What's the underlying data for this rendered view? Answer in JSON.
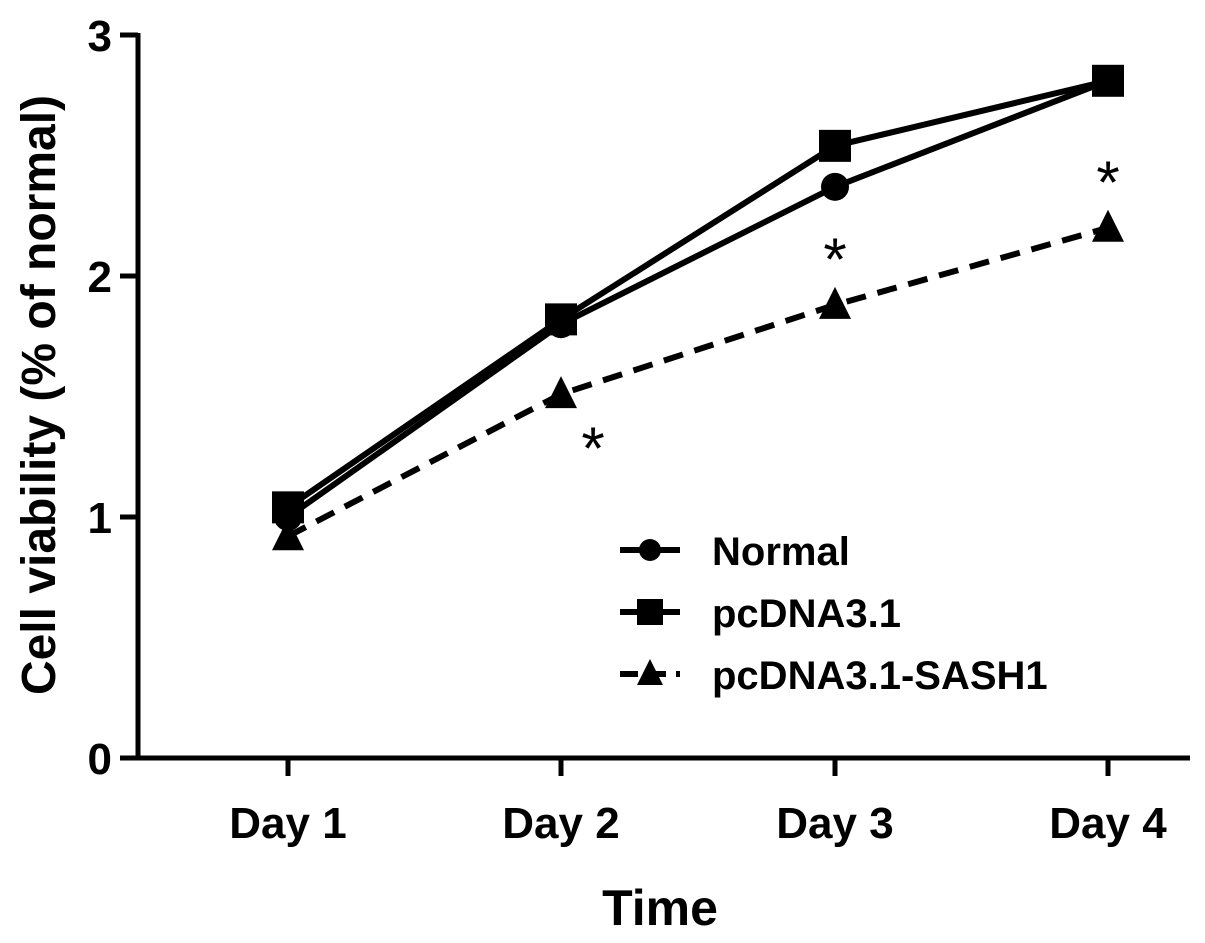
{
  "chart_data": {
    "type": "line",
    "title": "",
    "xlabel": "Time",
    "ylabel": "Cell viability (% of normal)",
    "categories": [
      "Day 1",
      "Day 2",
      "Day 3",
      "Day 4"
    ],
    "ylim": [
      0,
      3
    ],
    "yticks": [
      "0",
      "1",
      "2",
      "3"
    ],
    "grid": false,
    "legend_position": "bottom-right",
    "series": [
      {
        "name": "Normal",
        "marker": "circle",
        "dash": false,
        "color": "#000000",
        "values": [
          1.0,
          1.8,
          2.37,
          2.81
        ]
      },
      {
        "name": "pcDNA3.1",
        "marker": "square",
        "dash": false,
        "color": "#000000",
        "values": [
          1.04,
          1.82,
          2.54,
          2.81
        ]
      },
      {
        "name": "pcDNA3.1-SASH1",
        "marker": "triangle",
        "dash": true,
        "color": "#000000",
        "values": [
          0.92,
          1.51,
          1.88,
          2.2
        ]
      }
    ],
    "annotations": [
      {
        "text": "*",
        "category": "Day 2",
        "series": "pcDNA3.1-SASH1",
        "position": "below-right"
      },
      {
        "text": "*",
        "category": "Day 3",
        "series": "pcDNA3.1-SASH1",
        "position": "above"
      },
      {
        "text": "*",
        "category": "Day 4",
        "series": "pcDNA3.1-SASH1",
        "position": "above"
      }
    ]
  }
}
